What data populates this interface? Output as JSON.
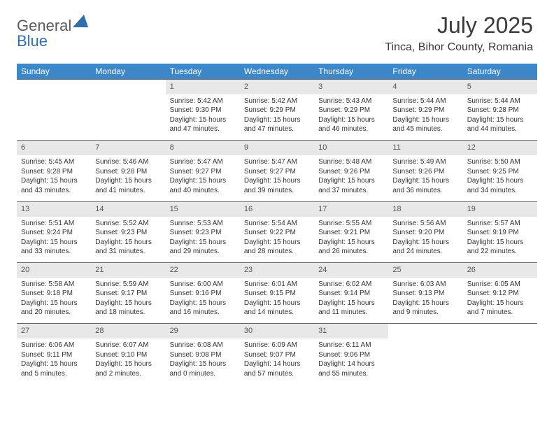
{
  "logo": {
    "text1": "General",
    "text2": "Blue"
  },
  "title": "July 2025",
  "location": "Tinca, Bihor County, Romania",
  "colors": {
    "header_bg": "#3b87c8",
    "header_text": "#ffffff",
    "daynum_bg": "#e8e8e8",
    "border": "#6a6a6a",
    "body_text": "#333333",
    "logo_gray": "#5a5a5a",
    "logo_blue": "#2f6fab"
  },
  "day_headers": [
    "Sunday",
    "Monday",
    "Tuesday",
    "Wednesday",
    "Thursday",
    "Friday",
    "Saturday"
  ],
  "weeks": [
    [
      null,
      null,
      {
        "n": "1",
        "sunrise": "5:42 AM",
        "sunset": "9:30 PM",
        "daylight": "15 hours and 47 minutes."
      },
      {
        "n": "2",
        "sunrise": "5:42 AM",
        "sunset": "9:29 PM",
        "daylight": "15 hours and 47 minutes."
      },
      {
        "n": "3",
        "sunrise": "5:43 AM",
        "sunset": "9:29 PM",
        "daylight": "15 hours and 46 minutes."
      },
      {
        "n": "4",
        "sunrise": "5:44 AM",
        "sunset": "9:29 PM",
        "daylight": "15 hours and 45 minutes."
      },
      {
        "n": "5",
        "sunrise": "5:44 AM",
        "sunset": "9:28 PM",
        "daylight": "15 hours and 44 minutes."
      }
    ],
    [
      {
        "n": "6",
        "sunrise": "5:45 AM",
        "sunset": "9:28 PM",
        "daylight": "15 hours and 43 minutes."
      },
      {
        "n": "7",
        "sunrise": "5:46 AM",
        "sunset": "9:28 PM",
        "daylight": "15 hours and 41 minutes."
      },
      {
        "n": "8",
        "sunrise": "5:47 AM",
        "sunset": "9:27 PM",
        "daylight": "15 hours and 40 minutes."
      },
      {
        "n": "9",
        "sunrise": "5:47 AM",
        "sunset": "9:27 PM",
        "daylight": "15 hours and 39 minutes."
      },
      {
        "n": "10",
        "sunrise": "5:48 AM",
        "sunset": "9:26 PM",
        "daylight": "15 hours and 37 minutes."
      },
      {
        "n": "11",
        "sunrise": "5:49 AM",
        "sunset": "9:26 PM",
        "daylight": "15 hours and 36 minutes."
      },
      {
        "n": "12",
        "sunrise": "5:50 AM",
        "sunset": "9:25 PM",
        "daylight": "15 hours and 34 minutes."
      }
    ],
    [
      {
        "n": "13",
        "sunrise": "5:51 AM",
        "sunset": "9:24 PM",
        "daylight": "15 hours and 33 minutes."
      },
      {
        "n": "14",
        "sunrise": "5:52 AM",
        "sunset": "9:23 PM",
        "daylight": "15 hours and 31 minutes."
      },
      {
        "n": "15",
        "sunrise": "5:53 AM",
        "sunset": "9:23 PM",
        "daylight": "15 hours and 29 minutes."
      },
      {
        "n": "16",
        "sunrise": "5:54 AM",
        "sunset": "9:22 PM",
        "daylight": "15 hours and 28 minutes."
      },
      {
        "n": "17",
        "sunrise": "5:55 AM",
        "sunset": "9:21 PM",
        "daylight": "15 hours and 26 minutes."
      },
      {
        "n": "18",
        "sunrise": "5:56 AM",
        "sunset": "9:20 PM",
        "daylight": "15 hours and 24 minutes."
      },
      {
        "n": "19",
        "sunrise": "5:57 AM",
        "sunset": "9:19 PM",
        "daylight": "15 hours and 22 minutes."
      }
    ],
    [
      {
        "n": "20",
        "sunrise": "5:58 AM",
        "sunset": "9:18 PM",
        "daylight": "15 hours and 20 minutes."
      },
      {
        "n": "21",
        "sunrise": "5:59 AM",
        "sunset": "9:17 PM",
        "daylight": "15 hours and 18 minutes."
      },
      {
        "n": "22",
        "sunrise": "6:00 AM",
        "sunset": "9:16 PM",
        "daylight": "15 hours and 16 minutes."
      },
      {
        "n": "23",
        "sunrise": "6:01 AM",
        "sunset": "9:15 PM",
        "daylight": "15 hours and 14 minutes."
      },
      {
        "n": "24",
        "sunrise": "6:02 AM",
        "sunset": "9:14 PM",
        "daylight": "15 hours and 11 minutes."
      },
      {
        "n": "25",
        "sunrise": "6:03 AM",
        "sunset": "9:13 PM",
        "daylight": "15 hours and 9 minutes."
      },
      {
        "n": "26",
        "sunrise": "6:05 AM",
        "sunset": "9:12 PM",
        "daylight": "15 hours and 7 minutes."
      }
    ],
    [
      {
        "n": "27",
        "sunrise": "6:06 AM",
        "sunset": "9:11 PM",
        "daylight": "15 hours and 5 minutes."
      },
      {
        "n": "28",
        "sunrise": "6:07 AM",
        "sunset": "9:10 PM",
        "daylight": "15 hours and 2 minutes."
      },
      {
        "n": "29",
        "sunrise": "6:08 AM",
        "sunset": "9:08 PM",
        "daylight": "15 hours and 0 minutes."
      },
      {
        "n": "30",
        "sunrise": "6:09 AM",
        "sunset": "9:07 PM",
        "daylight": "14 hours and 57 minutes."
      },
      {
        "n": "31",
        "sunrise": "6:11 AM",
        "sunset": "9:06 PM",
        "daylight": "14 hours and 55 minutes."
      },
      null,
      null
    ]
  ],
  "labels": {
    "sunrise": "Sunrise:",
    "sunset": "Sunset:",
    "daylight": "Daylight:"
  }
}
